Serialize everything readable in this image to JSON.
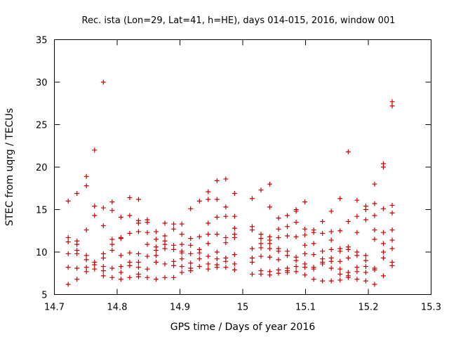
{
  "chart_data": {
    "type": "scatter",
    "title": "Rec. ista (Lon=29, Lat=41, h=HE), days 014-015, 2016, window 001",
    "xlabel": "GPS time / Days of year 2016",
    "ylabel": "STEC from uqrg / TECUs",
    "xlim": [
      14.7,
      15.3
    ],
    "ylim": [
      5,
      35
    ],
    "xticks": [
      14.7,
      14.8,
      14.9,
      15,
      15.1,
      15.2,
      15.3
    ],
    "xtick_labels": [
      "14.7",
      "14.8",
      "14.9",
      "15",
      "15.1",
      "15.2",
      "15.3"
    ],
    "yticks": [
      5,
      10,
      15,
      20,
      25,
      30,
      35
    ],
    "ytick_labels": [
      "5",
      "10",
      "15",
      "20",
      "25",
      "30",
      "35"
    ],
    "grid": false,
    "marker": "+",
    "color": "#cc0000",
    "series": [
      {
        "name": "STEC",
        "points": [
          [
            14.722,
            16.0
          ],
          [
            14.722,
            11.7
          ],
          [
            14.722,
            11.2
          ],
          [
            14.722,
            9.8
          ],
          [
            14.722,
            8.2
          ],
          [
            14.722,
            6.2
          ],
          [
            14.736,
            16.9
          ],
          [
            14.736,
            11.3
          ],
          [
            14.736,
            10.9
          ],
          [
            14.736,
            10.2
          ],
          [
            14.736,
            9.8
          ],
          [
            14.736,
            8.1
          ],
          [
            14.736,
            6.8
          ],
          [
            14.751,
            18.9
          ],
          [
            14.751,
            17.8
          ],
          [
            14.751,
            12.6
          ],
          [
            14.751,
            9.6
          ],
          [
            14.751,
            9.1
          ],
          [
            14.751,
            8.2
          ],
          [
            14.751,
            7.7
          ],
          [
            14.764,
            22.0
          ],
          [
            14.764,
            15.4
          ],
          [
            14.764,
            14.3
          ],
          [
            14.764,
            8.8
          ],
          [
            14.764,
            8.5
          ],
          [
            14.764,
            8.0
          ],
          [
            14.778,
            30.0
          ],
          [
            14.778,
            15.2
          ],
          [
            14.778,
            13.1
          ],
          [
            14.778,
            9.8
          ],
          [
            14.778,
            9.3
          ],
          [
            14.778,
            8.3
          ],
          [
            14.778,
            7.8
          ],
          [
            14.778,
            7.2
          ],
          [
            14.792,
            15.9
          ],
          [
            14.792,
            14.9
          ],
          [
            14.792,
            11.5
          ],
          [
            14.792,
            10.9
          ],
          [
            14.792,
            10.2
          ],
          [
            14.792,
            8.1
          ],
          [
            14.792,
            7.0
          ],
          [
            14.806,
            14.1
          ],
          [
            14.806,
            11.7
          ],
          [
            14.806,
            11.6
          ],
          [
            14.806,
            9.6
          ],
          [
            14.806,
            8.3
          ],
          [
            14.806,
            7.6
          ],
          [
            14.806,
            6.8
          ],
          [
            14.82,
            16.4
          ],
          [
            14.82,
            14.3
          ],
          [
            14.82,
            12.2
          ],
          [
            14.82,
            9.9
          ],
          [
            14.82,
            8.8
          ],
          [
            14.82,
            8.4
          ],
          [
            14.82,
            7.0
          ],
          [
            14.834,
            16.2
          ],
          [
            14.834,
            13.7
          ],
          [
            14.834,
            13.4
          ],
          [
            14.834,
            12.4
          ],
          [
            14.834,
            9.8
          ],
          [
            14.834,
            8.8
          ],
          [
            14.834,
            8.2
          ],
          [
            14.834,
            7.4
          ],
          [
            14.834,
            7.1
          ],
          [
            14.848,
            13.8
          ],
          [
            14.848,
            13.5
          ],
          [
            14.848,
            12.3
          ],
          [
            14.848,
            10.9
          ],
          [
            14.848,
            9.5
          ],
          [
            14.848,
            8.0
          ],
          [
            14.848,
            7.0
          ],
          [
            14.862,
            12.4
          ],
          [
            14.862,
            11.5
          ],
          [
            14.862,
            10.6
          ],
          [
            14.862,
            10.2
          ],
          [
            14.862,
            9.6
          ],
          [
            14.862,
            8.8
          ],
          [
            14.862,
            6.8
          ],
          [
            14.876,
            13.4
          ],
          [
            14.876,
            11.9
          ],
          [
            14.876,
            11.3
          ],
          [
            14.876,
            10.9
          ],
          [
            14.876,
            10.4
          ],
          [
            14.876,
            8.6
          ],
          [
            14.876,
            7.0
          ],
          [
            14.89,
            13.3
          ],
          [
            14.89,
            12.7
          ],
          [
            14.89,
            10.8
          ],
          [
            14.89,
            10.3
          ],
          [
            14.89,
            8.9
          ],
          [
            14.89,
            8.4
          ],
          [
            14.89,
            7.0
          ],
          [
            14.903,
            13.3
          ],
          [
            14.903,
            12.1
          ],
          [
            14.903,
            10.9
          ],
          [
            14.903,
            10.1
          ],
          [
            14.903,
            9.9
          ],
          [
            14.903,
            9.2
          ],
          [
            14.903,
            8.3
          ],
          [
            14.903,
            7.6
          ],
          [
            14.917,
            15.1
          ],
          [
            14.917,
            11.6
          ],
          [
            14.917,
            10.8
          ],
          [
            14.917,
            9.8
          ],
          [
            14.917,
            8.7
          ],
          [
            14.917,
            8.1
          ],
          [
            14.917,
            7.8
          ],
          [
            14.931,
            16.0
          ],
          [
            14.931,
            11.8
          ],
          [
            14.931,
            10.3
          ],
          [
            14.931,
            9.9
          ],
          [
            14.931,
            9.2
          ],
          [
            14.931,
            8.3
          ],
          [
            14.945,
            17.1
          ],
          [
            14.945,
            16.2
          ],
          [
            14.945,
            13.4
          ],
          [
            14.945,
            12.1
          ],
          [
            14.945,
            11.0
          ],
          [
            14.945,
            9.5
          ],
          [
            14.945,
            8.6
          ],
          [
            14.945,
            8.0
          ],
          [
            14.959,
            18.4
          ],
          [
            14.959,
            16.2
          ],
          [
            14.959,
            14.1
          ],
          [
            14.959,
            12.1
          ],
          [
            14.959,
            10.0
          ],
          [
            14.959,
            9.2
          ],
          [
            14.959,
            8.5
          ],
          [
            14.959,
            8.2
          ],
          [
            14.973,
            18.6
          ],
          [
            14.973,
            15.3
          ],
          [
            14.973,
            14.2
          ],
          [
            14.973,
            11.7
          ],
          [
            14.973,
            11.1
          ],
          [
            14.973,
            9.3
          ],
          [
            14.973,
            8.9
          ],
          [
            14.973,
            8.2
          ],
          [
            14.987,
            16.9
          ],
          [
            14.987,
            14.2
          ],
          [
            14.987,
            12.8
          ],
          [
            14.987,
            12.1
          ],
          [
            14.987,
            11.7
          ],
          [
            14.987,
            9.7
          ],
          [
            14.987,
            8.6
          ],
          [
            14.987,
            7.9
          ],
          [
            15.015,
            16.3
          ],
          [
            15.015,
            13.0
          ],
          [
            15.015,
            12.6
          ],
          [
            15.015,
            10.4
          ],
          [
            15.015,
            9.3
          ],
          [
            15.015,
            8.8
          ],
          [
            15.015,
            7.4
          ],
          [
            15.029,
            17.3
          ],
          [
            15.029,
            12.1
          ],
          [
            15.029,
            11.6
          ],
          [
            15.029,
            11.0
          ],
          [
            15.029,
            10.5
          ],
          [
            15.029,
            9.5
          ],
          [
            15.029,
            7.8
          ],
          [
            15.029,
            7.4
          ],
          [
            15.043,
            18.0
          ],
          [
            15.043,
            15.3
          ],
          [
            15.043,
            11.8
          ],
          [
            15.043,
            11.4
          ],
          [
            15.043,
            11.0
          ],
          [
            15.043,
            10.4
          ],
          [
            15.043,
            9.4
          ],
          [
            15.043,
            7.7
          ],
          [
            15.043,
            7.3
          ],
          [
            15.057,
            14.0
          ],
          [
            15.057,
            12.7
          ],
          [
            15.057,
            11.7
          ],
          [
            15.057,
            10.4
          ],
          [
            15.057,
            10.1
          ],
          [
            15.057,
            9.1
          ],
          [
            15.057,
            7.9
          ],
          [
            15.057,
            7.5
          ],
          [
            15.071,
            14.3
          ],
          [
            15.071,
            13.0
          ],
          [
            15.071,
            11.9
          ],
          [
            15.071,
            10.1
          ],
          [
            15.071,
            9.6
          ],
          [
            15.071,
            8.1
          ],
          [
            15.071,
            7.8
          ],
          [
            15.071,
            7.6
          ],
          [
            15.085,
            15.0
          ],
          [
            15.085,
            14.8
          ],
          [
            15.085,
            13.5
          ],
          [
            15.085,
            11.8
          ],
          [
            15.085,
            9.4
          ],
          [
            15.085,
            9.0
          ],
          [
            15.085,
            8.3
          ],
          [
            15.085,
            7.7
          ],
          [
            15.099,
            15.9
          ],
          [
            15.099,
            12.7
          ],
          [
            15.099,
            12.0
          ],
          [
            15.099,
            10.8
          ],
          [
            15.099,
            9.8
          ],
          [
            15.099,
            8.6
          ],
          [
            15.099,
            8.2
          ],
          [
            15.099,
            7.3
          ],
          [
            15.113,
            12.6
          ],
          [
            15.113,
            12.3
          ],
          [
            15.113,
            11.0
          ],
          [
            15.113,
            9.7
          ],
          [
            15.113,
            8.2
          ],
          [
            15.113,
            8.0
          ],
          [
            15.113,
            6.8
          ],
          [
            15.127,
            13.6
          ],
          [
            15.127,
            12.2
          ],
          [
            15.127,
            10.1
          ],
          [
            15.127,
            9.2
          ],
          [
            15.127,
            8.8
          ],
          [
            15.127,
            8.6
          ],
          [
            15.127,
            6.6
          ],
          [
            15.141,
            14.8
          ],
          [
            15.141,
            12.4
          ],
          [
            15.141,
            11.4
          ],
          [
            15.141,
            10.3
          ],
          [
            15.141,
            9.3
          ],
          [
            15.141,
            8.9
          ],
          [
            15.141,
            8.1
          ],
          [
            15.141,
            6.6
          ],
          [
            15.155,
            16.3
          ],
          [
            15.155,
            12.5
          ],
          [
            15.155,
            10.4
          ],
          [
            15.155,
            10.1
          ],
          [
            15.155,
            8.9
          ],
          [
            15.155,
            8.0
          ],
          [
            15.155,
            7.4
          ],
          [
            15.155,
            6.7
          ],
          [
            15.168,
            21.8
          ],
          [
            15.168,
            13.6
          ],
          [
            15.168,
            10.6
          ],
          [
            15.168,
            10.3
          ],
          [
            15.168,
            9.3
          ],
          [
            15.168,
            7.6
          ],
          [
            15.168,
            7.2
          ],
          [
            15.168,
            7.0
          ],
          [
            15.182,
            16.1
          ],
          [
            15.182,
            14.2
          ],
          [
            15.182,
            12.3
          ],
          [
            15.182,
            10.0
          ],
          [
            15.182,
            9.6
          ],
          [
            15.182,
            8.2
          ],
          [
            15.182,
            7.7
          ],
          [
            15.182,
            6.8
          ],
          [
            15.196,
            15.4
          ],
          [
            15.196,
            15.0
          ],
          [
            15.196,
            13.8
          ],
          [
            15.196,
            9.6
          ],
          [
            15.196,
            9.0
          ],
          [
            15.196,
            8.3
          ],
          [
            15.196,
            7.6
          ],
          [
            15.196,
            6.6
          ],
          [
            15.21,
            18.0
          ],
          [
            15.21,
            15.7
          ],
          [
            15.21,
            14.3
          ],
          [
            15.21,
            12.6
          ],
          [
            15.21,
            11.5
          ],
          [
            15.21,
            8.1
          ],
          [
            15.21,
            7.9
          ],
          [
            15.21,
            6.2
          ],
          [
            15.224,
            20.4
          ],
          [
            15.224,
            20.0
          ],
          [
            15.224,
            15.1
          ],
          [
            15.224,
            12.3
          ],
          [
            15.224,
            11.0
          ],
          [
            15.224,
            10.0
          ],
          [
            15.224,
            9.3
          ],
          [
            15.224,
            7.2
          ],
          [
            15.238,
            27.7
          ],
          [
            15.238,
            27.2
          ],
          [
            15.238,
            15.5
          ],
          [
            15.238,
            14.6
          ],
          [
            15.238,
            12.6
          ],
          [
            15.238,
            11.4
          ],
          [
            15.238,
            10.4
          ],
          [
            15.238,
            8.8
          ],
          [
            15.238,
            8.4
          ]
        ]
      }
    ]
  }
}
